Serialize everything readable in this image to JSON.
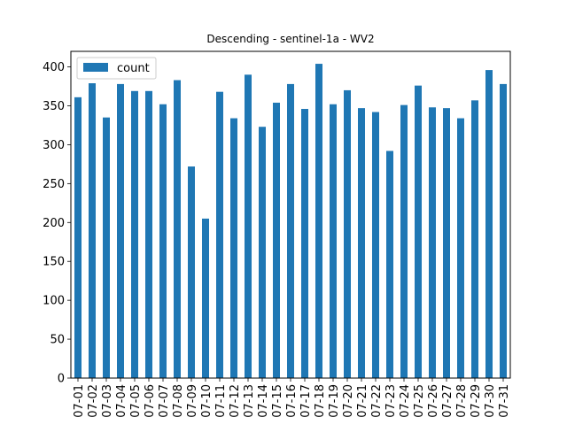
{
  "chart_data": {
    "type": "bar",
    "title": "Descending - sentinel-1a - WV2",
    "xlabel": "",
    "ylabel": "",
    "categories": [
      "07-01",
      "07-02",
      "07-03",
      "07-04",
      "07-05",
      "07-06",
      "07-07",
      "07-08",
      "07-09",
      "07-10",
      "07-11",
      "07-12",
      "07-13",
      "07-14",
      "07-15",
      "07-16",
      "07-17",
      "07-18",
      "07-19",
      "07-20",
      "07-21",
      "07-22",
      "07-23",
      "07-24",
      "07-25",
      "07-26",
      "07-27",
      "07-28",
      "07-29",
      "07-30",
      "07-31"
    ],
    "series": [
      {
        "name": "count",
        "color": "#1f77b4",
        "values": [
          361,
          379,
          335,
          378,
          369,
          369,
          352,
          383,
          272,
          205,
          368,
          334,
          390,
          323,
          354,
          378,
          346,
          404,
          352,
          370,
          347,
          342,
          292,
          351,
          376,
          348,
          347,
          334,
          357,
          396,
          378
        ]
      }
    ],
    "ylim": [
      0,
      420
    ],
    "yticks": [
      0,
      50,
      100,
      150,
      200,
      250,
      300,
      350,
      400
    ],
    "legend_position": "top-left",
    "grid": false
  }
}
